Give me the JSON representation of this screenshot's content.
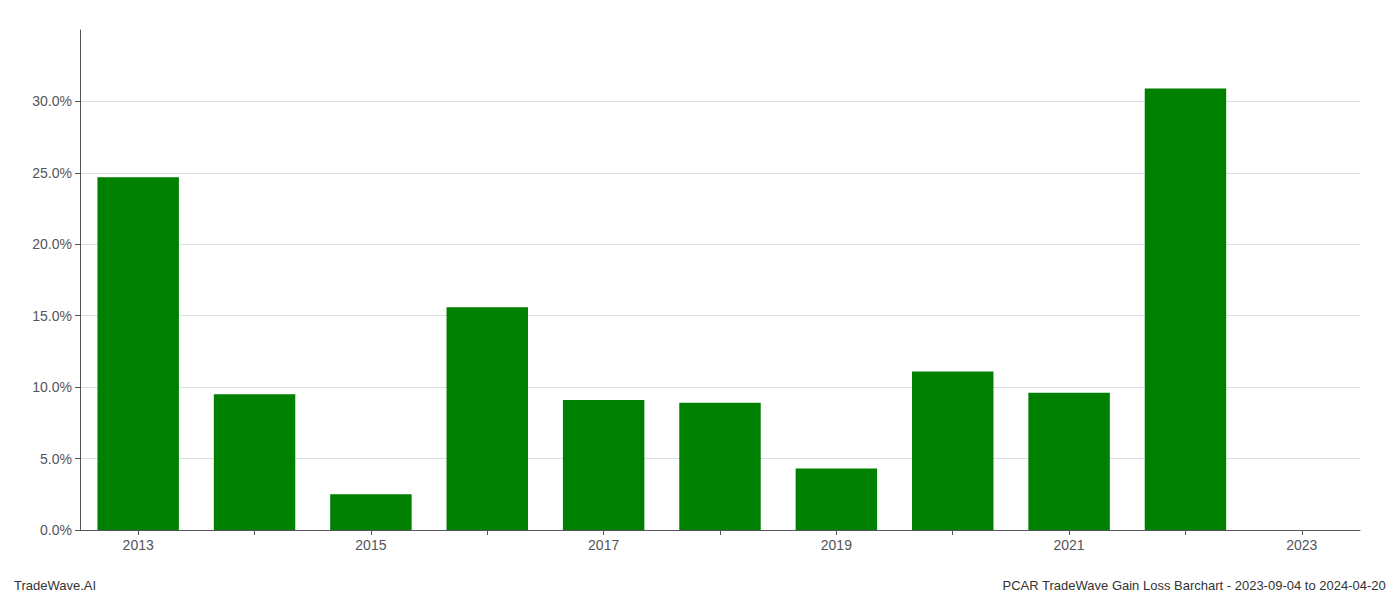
{
  "chart_data": {
    "type": "bar",
    "categories": [
      "2013",
      null,
      "2015",
      null,
      "2017",
      null,
      "2019",
      null,
      "2021",
      null,
      "2023"
    ],
    "values": [
      0.247,
      0.095,
      0.025,
      0.156,
      0.091,
      0.089,
      0.043,
      0.111,
      0.096,
      0.309,
      0.0
    ],
    "color": "#008000",
    "ylim": [
      0,
      0.35
    ],
    "yticks": [
      {
        "value": 0.0,
        "label": "0.0%"
      },
      {
        "value": 0.05,
        "label": "5.0%"
      },
      {
        "value": 0.1,
        "label": "10.0%"
      },
      {
        "value": 0.15,
        "label": "15.0%"
      },
      {
        "value": 0.2,
        "label": "20.0%"
      },
      {
        "value": 0.25,
        "label": "25.0%"
      },
      {
        "value": 0.3,
        "label": "30.0%"
      }
    ],
    "grid": true,
    "annotations": [
      "TradeWave.AI",
      "PCAR TradeWave Gain Loss Barchart - 2023-09-04 to 2024-04-20"
    ]
  }
}
